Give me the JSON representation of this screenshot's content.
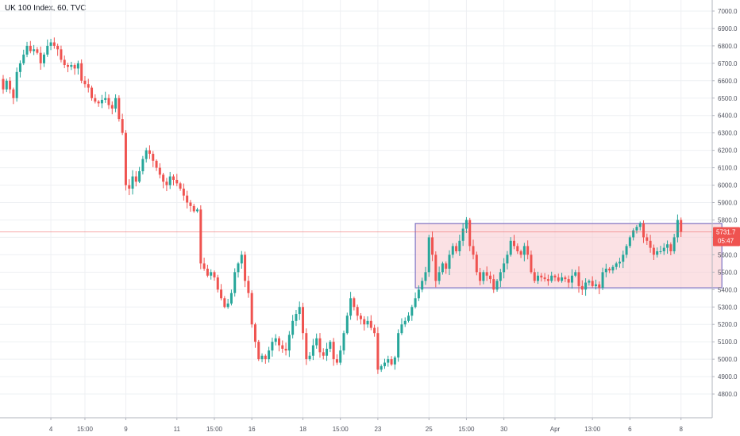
{
  "chart_data": {
    "type": "candlestick",
    "title": "UK 100 Index, 60, TVC",
    "ylim": [
      4700,
      7100
    ],
    "y_ticks": [
      7000.0,
      6900.0,
      6800.0,
      6700.0,
      6600.0,
      6500.0,
      6400.0,
      6300.0,
      6200.0,
      6100.0,
      6000.0,
      5900.0,
      5800.0,
      5700.0,
      5600.0,
      5500.0,
      5400.0,
      5300.0,
      5200.0,
      5100.0,
      5000.0,
      4900.0,
      4800.0
    ],
    "y_tick_labels": [
      "7000.0",
      "6900.0",
      "6800.0",
      "6700.0",
      "6600.0",
      "6500.0",
      "6400.0",
      "6300.0",
      "6200.0",
      "6100.0",
      "6000.0",
      "5900.0",
      "5800.0",
      "5700.0",
      "5600.0",
      "5500.0",
      "5400.0",
      "5300.0",
      "5200.0",
      "5100.0",
      "5000.0",
      "4900.0",
      "4800.0"
    ],
    "x_ticks": [
      {
        "label": "4",
        "bar": 14
      },
      {
        "label": "15:00",
        "bar": 24
      },
      {
        "label": "9",
        "bar": 36
      },
      {
        "label": "11",
        "bar": 51
      },
      {
        "label": "15:00",
        "bar": 62
      },
      {
        "label": "16",
        "bar": 73
      },
      {
        "label": "18",
        "bar": 88
      },
      {
        "label": "15:00",
        "bar": 99
      },
      {
        "label": "23",
        "bar": 110
      },
      {
        "label": "25",
        "bar": 125
      },
      {
        "label": "15:00",
        "bar": 136
      },
      {
        "label": "30",
        "bar": 147
      },
      {
        "label": "Apr",
        "bar": 162
      },
      {
        "label": "13:00",
        "bar": 173
      },
      {
        "label": "6",
        "bar": 184
      },
      {
        "label": "8",
        "bar": 199
      }
    ],
    "current_price": 5731.7,
    "countdown": "05:47",
    "range_box": {
      "from_bar": 121,
      "to_bar": 211,
      "top": 5780,
      "bottom": 5410
    },
    "colors": {
      "up": "#26a69a",
      "down": "#ef5350",
      "grid": "#eef0f3",
      "range_border": "#7e74c4",
      "range_fill": "#f7c9ce",
      "price_line": "#ef5350"
    },
    "closes": [
      6550,
      6600,
      6550,
      6500,
      6650,
      6700,
      6750,
      6800,
      6770,
      6780,
      6760,
      6700,
      6750,
      6800,
      6820,
      6800,
      6780,
      6720,
      6690,
      6680,
      6690,
      6670,
      6700,
      6600,
      6580,
      6560,
      6500,
      6480,
      6470,
      6490,
      6500,
      6460,
      6440,
      6500,
      6380,
      6300,
      6000,
      5980,
      6050,
      6020,
      6080,
      6150,
      6200,
      6180,
      6140,
      6100,
      6060,
      6020,
      6000,
      6050,
      6030,
      6010,
      5980,
      5940,
      5900,
      5880,
      5850,
      5860,
      5550,
      5520,
      5480,
      5500,
      5470,
      5400,
      5350,
      5300,
      5320,
      5380,
      5500,
      5550,
      5600,
      5450,
      5380,
      5200,
      5100,
      5000,
      5020,
      5000,
      5050,
      5100,
      5120,
      5080,
      5060,
      5050,
      5140,
      5220,
      5260,
      5300,
      5150,
      5000,
      5020,
      5080,
      5120,
      5040,
      5020,
      5060,
      5100,
      5000,
      4980,
      5050,
      5150,
      5250,
      5350,
      5300,
      5250,
      5230,
      5200,
      5220,
      5180,
      5150,
      4940,
      4960,
      4980,
      5000,
      4970,
      5010,
      5150,
      5200,
      5220,
      5250,
      5300,
      5350,
      5400,
      5450,
      5500,
      5700,
      5600,
      5450,
      5500,
      5550,
      5520,
      5600,
      5650,
      5620,
      5680,
      5750,
      5800,
      5650,
      5600,
      5500,
      5450,
      5500,
      5480,
      5460,
      5400,
      5450,
      5500,
      5550,
      5600,
      5680,
      5650,
      5620,
      5600,
      5650,
      5600,
      5500,
      5450,
      5480,
      5470,
      5460,
      5450,
      5480,
      5470,
      5450,
      5470,
      5460,
      5440,
      5480,
      5500,
      5420,
      5400,
      5440,
      5450,
      5420,
      5430,
      5410,
      5500,
      5520,
      5510,
      5530,
      5550,
      5560,
      5600,
      5650,
      5700,
      5740,
      5760,
      5780,
      5700,
      5680,
      5640,
      5600,
      5620,
      5620,
      5640,
      5660,
      5620,
      5700,
      5800,
      5731.7
    ]
  }
}
